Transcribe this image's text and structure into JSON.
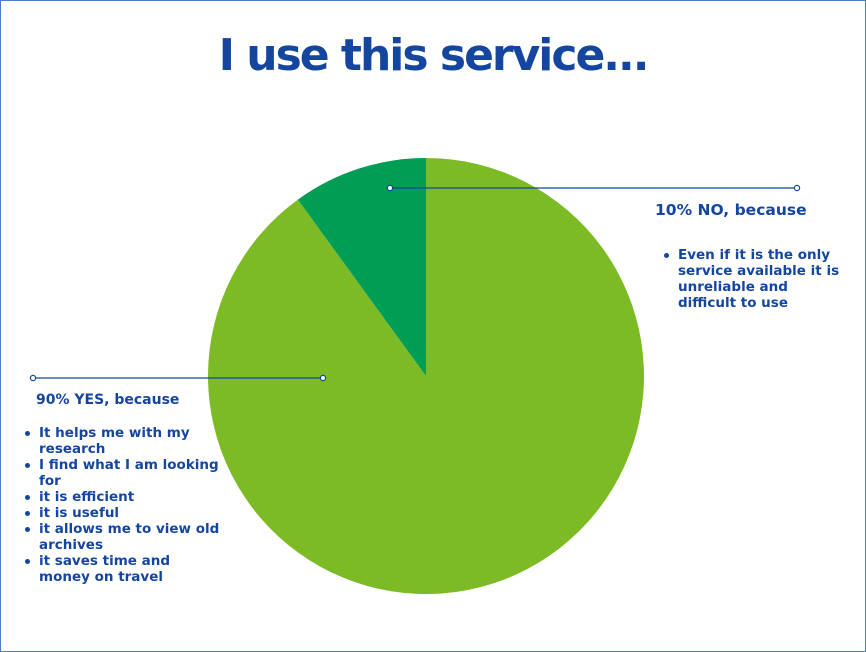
{
  "chart_data": {
    "type": "pie",
    "title": "I use this service...",
    "slices": [
      {
        "label": "90% YES, because",
        "value": 90,
        "color": "#7dbb26",
        "reasons": [
          "It helps me with my research",
          "I find what I am looking for",
          "it is efficient",
          "it is useful",
          "it allows me to view old archives",
          "it saves time and money on travel"
        ]
      },
      {
        "label": "10% NO, because",
        "value": 10,
        "color": "#009d55",
        "reasons": [
          "Even if it is the only service available it is unreliable and difficult to use"
        ]
      }
    ],
    "start_angle_deg": 0,
    "direction": "clockwise"
  },
  "colors": {
    "title": "#1446a0",
    "text": "#1446a0",
    "leader_line": "#1446a0",
    "border": "#4a7fc4"
  }
}
